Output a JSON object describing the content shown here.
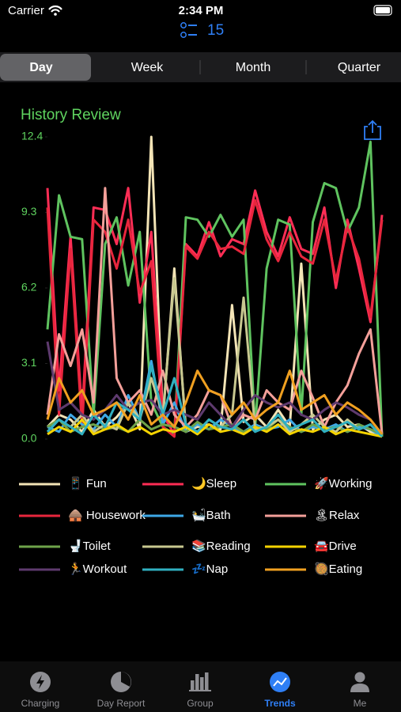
{
  "status_bar": {
    "carrier": "Carrier",
    "time": "2:34 PM"
  },
  "header": {
    "count": "15"
  },
  "segments": [
    "Day",
    "Week",
    "Month",
    "Quarter"
  ],
  "chart_data": {
    "type": "line",
    "title": "History Review",
    "ylim": [
      0,
      12.4
    ],
    "yticks": [
      {
        "value": 0,
        "label": "0.0"
      },
      3.1,
      6.2,
      9.3,
      12.4
    ],
    "series": [
      {
        "name": "📱 Fun",
        "color": "#f3e4b6",
        "values": [
          0.5,
          1,
          0.8,
          0.3,
          1.2,
          0.5,
          0.9,
          1.5,
          0.4,
          12.4,
          0.8,
          7,
          0.3,
          0.5,
          0.6,
          0.4,
          5.5,
          0.7,
          1,
          0.5,
          1.2,
          0.5,
          7.2,
          0.4,
          0.8,
          1,
          0.5,
          0.6,
          0.3,
          0.2
        ]
      },
      {
        "name": "🌙Sleep",
        "color": "#ff2d55",
        "values": [
          10.3,
          2,
          8.3,
          1,
          9.5,
          9.4,
          8,
          10.3,
          5.6,
          8.5,
          1,
          0.2,
          8,
          7.5,
          8.9,
          7.5,
          8.2,
          8,
          10.2,
          8.5,
          7.5,
          9.1,
          7.8,
          7.6,
          9.5,
          6.2,
          9,
          7,
          4.8,
          9.2
        ]
      },
      {
        "name": "🚀Working",
        "color": "#5fc35f",
        "values": [
          4.5,
          10,
          8.3,
          8.2,
          1,
          8,
          9.1,
          6.3,
          8.5,
          1.5,
          0.5,
          0.2,
          9.1,
          9,
          8.3,
          9.2,
          8.3,
          9,
          0.5,
          7,
          9,
          8.8,
          1,
          8.9,
          10.5,
          10.3,
          8.5,
          9.5,
          12.2,
          0.1
        ]
      },
      {
        "name": "🛖 Housework",
        "color": "#e8263d",
        "values": [
          9.5,
          1,
          7.8,
          0.5,
          9,
          8.5,
          7,
          9,
          6,
          7.3,
          0.5,
          0.1,
          7.9,
          7.4,
          8.5,
          7.8,
          7.9,
          7.6,
          9.8,
          8.2,
          7.3,
          8.5,
          7.5,
          7.2,
          9,
          6.5,
          8.7,
          7.4,
          5,
          9
        ]
      },
      {
        "name": "🛀Bath",
        "color": "#3ea8e6",
        "values": [
          0.5,
          0.3,
          1,
          0.6,
          0.4,
          1,
          0.5,
          1.8,
          0.8,
          3.2,
          0.6,
          1.5,
          0.3,
          0.6,
          0.4,
          0.8,
          0.5,
          0.3,
          0.6,
          0.4,
          0.5,
          0.8,
          0.3,
          0.5,
          0.4,
          0.6,
          0.3,
          0.5,
          0.4,
          0.1
        ]
      },
      {
        "name": "🏝Relax",
        "color": "#f4a09a",
        "values": [
          1,
          4.3,
          3,
          4.5,
          1.5,
          10.3,
          2.5,
          1.5,
          2,
          1,
          2.8,
          1,
          0.5,
          1,
          2,
          1.8,
          0.5,
          1,
          0.8,
          2,
          1.5,
          1.2,
          2.8,
          1.7,
          0.5,
          1.5,
          2.2,
          3.5,
          4.5,
          0.2
        ]
      },
      {
        "name": "🚽Toilet",
        "color": "#6ea34a",
        "values": [
          0.5,
          0.8,
          0.3,
          0.5,
          0.6,
          0.4,
          0.5,
          0.3,
          0.8,
          0.4,
          0.6,
          0.5,
          0.3,
          0.7,
          0.4,
          0.5,
          0.6,
          0.3,
          0.5,
          0.4,
          0.8,
          0.5,
          0.3,
          0.6,
          0.4,
          0.5,
          0.3,
          0.6,
          0.4,
          0.2
        ]
      },
      {
        "name": "📚Reading",
        "color": "#c8c890",
        "values": [
          0.3,
          0.8,
          0.5,
          1,
          0.3,
          0.6,
          0.4,
          1.5,
          0.8,
          2.5,
          1,
          6.6,
          0.5,
          0.3,
          0.8,
          0.5,
          1,
          5.8,
          0.4,
          0.5,
          0.8,
          0.3,
          0.6,
          1,
          0.5,
          0.3,
          0.8,
          0.4,
          0.6,
          0.1
        ]
      },
      {
        "name": "🚘Drive",
        "color": "#f5d300",
        "values": [
          0.2,
          0.5,
          0.3,
          0.8,
          0.2,
          0.4,
          0.6,
          0.3,
          0.5,
          0.2,
          0.4,
          0.3,
          0.5,
          0.2,
          0.6,
          0.3,
          0.4,
          0.2,
          0.5,
          0.3,
          0.6,
          0.2,
          0.4,
          0.3,
          0.5,
          0.2,
          0.4,
          0.3,
          0.2,
          0.1
        ]
      },
      {
        "name": "🏃Workout",
        "color": "#5e3a6e",
        "values": [
          4,
          1.2,
          1.5,
          1,
          0.8,
          1.2,
          1.8,
          1.2,
          1.5,
          1.6,
          1,
          1.2,
          1,
          0.8,
          1.5,
          1,
          0.5,
          1.2,
          1.8,
          1.5,
          1.3,
          1.5,
          1,
          0.8,
          1.2,
          1.5,
          1.3,
          1,
          0.8,
          0.2
        ]
      },
      {
        "name": "💤Nap",
        "color": "#30b0c0",
        "values": [
          0.3,
          0.8,
          0.5,
          0.2,
          1,
          0.5,
          1.5,
          1.2,
          0.8,
          3,
          1,
          2.5,
          0.6,
          0.3,
          0.8,
          0.5,
          0.4,
          0.8,
          0.3,
          0.5,
          1,
          0.4,
          0.6,
          0.8,
          0.3,
          0.5,
          0.7,
          0.4,
          0.6,
          0.1
        ]
      },
      {
        "name": "🥘Eating",
        "color": "#f0a020",
        "values": [
          0.8,
          2.5,
          1.5,
          2,
          1,
          1.2,
          1.5,
          0.8,
          1.8,
          0.6,
          1,
          0.5,
          1.5,
          2.8,
          2,
          1.8,
          1,
          1.5,
          0.8,
          1.2,
          1.5,
          2.8,
          1.2,
          1.5,
          1.8,
          1,
          1.5,
          1.2,
          0.8,
          0.2
        ]
      }
    ]
  },
  "tab_bar": [
    "Charging",
    "Day Report",
    "Group",
    "Trends",
    "Me"
  ]
}
